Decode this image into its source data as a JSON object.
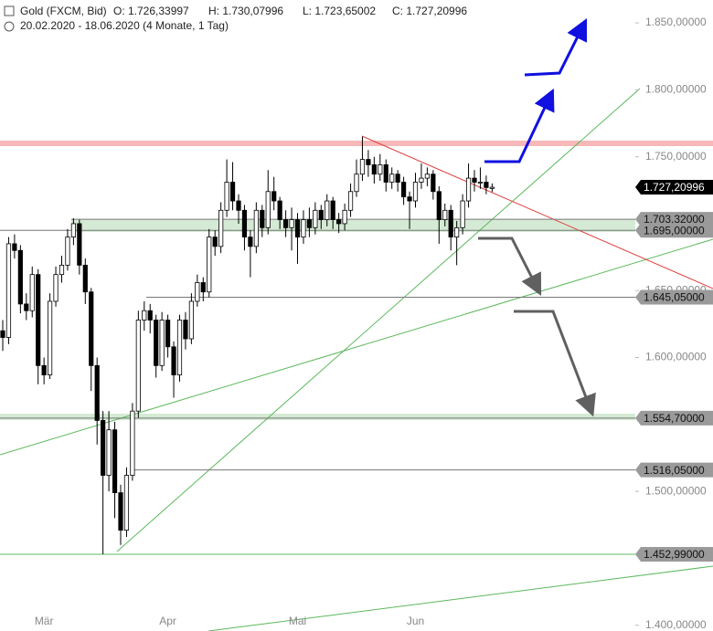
{
  "chart_data": {
    "type": "candlestick",
    "title": "Gold (FXCM, Bid)",
    "ohlc_labels": [
      "O: 1.726,33997",
      "H: 1.730,07996",
      "L: 1.723,65002",
      "C: 1.727,20996"
    ],
    "range_label": "20.02.2020 - 18.06.2020  (4 Monate, 1 Tag)",
    "categories": [
      null,
      null,
      null,
      null,
      null,
      null,
      null,
      "Mär",
      null,
      null,
      null,
      null,
      null,
      null,
      null,
      null,
      null,
      null,
      null,
      null,
      null,
      null,
      null,
      null,
      null,
      null,
      null,
      null,
      "Apr",
      null,
      null,
      null,
      null,
      null,
      null,
      null,
      null,
      null,
      null,
      null,
      null,
      null,
      null,
      null,
      null,
      null,
      null,
      null,
      null,
      null,
      "Mai",
      null,
      null,
      null,
      null,
      null,
      null,
      null,
      null,
      null,
      null,
      null,
      null,
      null,
      null,
      null,
      null,
      null,
      null,
      null,
      "Jun",
      null,
      null,
      null,
      null,
      null,
      null,
      null,
      null,
      null,
      null,
      null,
      null,
      null
    ],
    "open": [
      1620,
      1615,
      1685,
      1680,
      1640,
      1635,
      1662,
      1594,
      1587,
      1642,
      1662,
      1669,
      1690,
      1700,
      1669,
      1649,
      1594,
      1553,
      1512,
      1546,
      1499,
      1471,
      1512,
      1560,
      1628,
      1635,
      1628,
      1594,
      1628,
      1608,
      1587,
      1628,
      1614,
      1642,
      1656,
      1649,
      1690,
      1683,
      1710,
      1731,
      1717,
      1710,
      1690,
      1683,
      1710,
      1697,
      1724,
      1717,
      1703,
      1697,
      1703,
      1690,
      1703,
      1697,
      1710,
      1703,
      1717,
      1703,
      1700,
      1710,
      1724,
      1737,
      1748,
      1744,
      1737,
      1744,
      1731,
      1737,
      1731,
      1720,
      1717,
      1731,
      1734,
      1737,
      1724,
      1703,
      1710,
      1690,
      1697,
      1717,
      1734,
      1731,
      1731,
      1726.33997
    ],
    "high": [
      1628,
      1690,
      1692,
      1684,
      1648,
      1668,
      1666,
      1600,
      1648,
      1668,
      1676,
      1696,
      1704,
      1703,
      1674,
      1652,
      1600,
      1560,
      1560,
      1552,
      1505,
      1518,
      1566,
      1635,
      1642,
      1640,
      1632,
      1634,
      1632,
      1612,
      1632,
      1634,
      1648,
      1662,
      1660,
      1696,
      1695,
      1716,
      1748,
      1746,
      1722,
      1714,
      1695,
      1716,
      1714,
      1740,
      1735,
      1720,
      1710,
      1712,
      1708,
      1710,
      1712,
      1716,
      1714,
      1722,
      1720,
      1708,
      1715,
      1730,
      1748,
      1765,
      1755,
      1750,
      1752,
      1748,
      1742,
      1740,
      1735,
      1724,
      1738,
      1745,
      1742,
      1740,
      1728,
      1715,
      1714,
      1702,
      1722,
      1745,
      1740,
      1742,
      1736,
      1730.07996
    ],
    "low": [
      1605,
      1610,
      1674,
      1633,
      1628,
      1630,
      1580,
      1580,
      1584,
      1638,
      1656,
      1665,
      1684,
      1662,
      1640,
      1575,
      1535,
      1453,
      1500,
      1480,
      1460,
      1466,
      1508,
      1555,
      1620,
      1618,
      1585,
      1590,
      1600,
      1570,
      1582,
      1606,
      1610,
      1638,
      1642,
      1645,
      1676,
      1678,
      1705,
      1710,
      1700,
      1680,
      1660,
      1678,
      1690,
      1692,
      1710,
      1696,
      1690,
      1680,
      1670,
      1685,
      1690,
      1692,
      1696,
      1698,
      1696,
      1693,
      1695,
      1705,
      1720,
      1732,
      1735,
      1730,
      1732,
      1724,
      1726,
      1724,
      1714,
      1696,
      1712,
      1726,
      1728,
      1718,
      1685,
      1698,
      1680,
      1669,
      1692,
      1712,
      1724,
      1726,
      1722,
      1723.65002
    ],
    "close": [
      1615,
      1685,
      1680,
      1640,
      1635,
      1662,
      1594,
      1587,
      1642,
      1662,
      1669,
      1690,
      1700,
      1669,
      1649,
      1594,
      1553,
      1512,
      1546,
      1499,
      1471,
      1512,
      1560,
      1628,
      1635,
      1628,
      1594,
      1628,
      1608,
      1587,
      1628,
      1614,
      1642,
      1656,
      1649,
      1690,
      1683,
      1710,
      1731,
      1717,
      1710,
      1690,
      1683,
      1710,
      1697,
      1724,
      1717,
      1703,
      1697,
      1703,
      1690,
      1703,
      1697,
      1710,
      1703,
      1717,
      1703,
      1700,
      1710,
      1724,
      1737,
      1748,
      1744,
      1737,
      1744,
      1731,
      1737,
      1731,
      1720,
      1717,
      1731,
      1734,
      1737,
      1724,
      1703,
      1710,
      1690,
      1697,
      1717,
      1734,
      1731,
      1731,
      1727,
      1727.20996
    ],
    "up_color": "#ffffff",
    "down_color": "#000000",
    "ylim": [
      1395.7,
      1867.1
    ],
    "yticks": [
      {
        "value": 1400,
        "label": "1.400,00000"
      },
      {
        "value": 1500,
        "label": "1.500,00000"
      },
      {
        "value": 1600,
        "label": "1.600,00000"
      },
      {
        "value": 1650,
        "label": "1.650,00000"
      },
      {
        "value": 1750,
        "label": "1.750,00000"
      },
      {
        "value": 1800,
        "label": "1.800,00000"
      },
      {
        "value": 1850,
        "label": "1.850,00000"
      }
    ],
    "last_label": "1.727,20996",
    "levels": [
      {
        "value": 1703.32,
        "label": "1.703,32000"
      },
      {
        "value": 1695,
        "label": "1.695,00000"
      },
      {
        "value": 1645.05,
        "label": "1.645,05000"
      },
      {
        "value": 1554.7,
        "label": "1.554,70000"
      },
      {
        "value": 1516.05,
        "label": "1.516,05000"
      },
      {
        "value": 1452.99,
        "label": "1.452,99000"
      }
    ]
  }
}
